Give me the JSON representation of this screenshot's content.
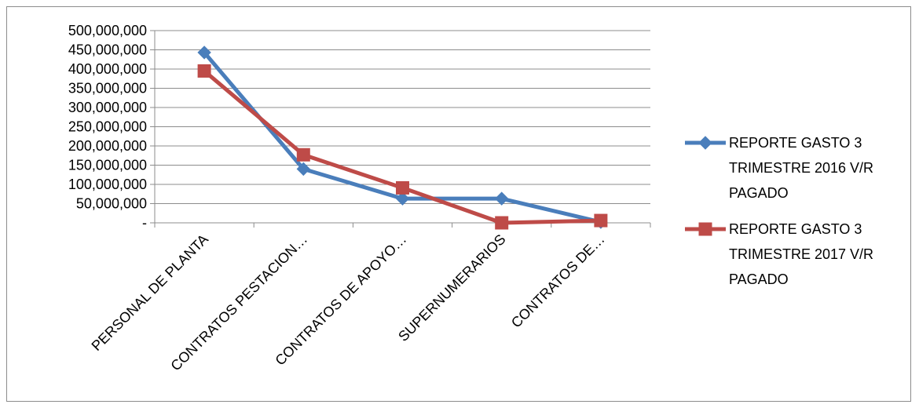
{
  "chart_data": {
    "type": "line",
    "categories": [
      "PERSONAL DE PLANTA",
      "CONTRATOS PESTACION…",
      "CONTRATOS DE APOYO…",
      "SUPERNUMERARIOS",
      "CONTRATOS DE…"
    ],
    "series": [
      {
        "name": "REPORTE GASTO 3 TRIMESTRE 2016 V/R PAGADO",
        "name_lines": [
          "REPORTE GASTO 3",
          "TRIMESTRE 2016 V/R",
          "PAGADO"
        ],
        "marker": "diamond",
        "color": "#4a7ebb",
        "values": [
          443000000,
          140000000,
          63000000,
          63000000,
          2000000
        ]
      },
      {
        "name": "REPORTE GASTO 3 TRIMESTRE 2017 V/R PAGADO",
        "name_lines": [
          "REPORTE GASTO 3",
          "TRIMESTRE 2017 V/R",
          "PAGADO"
        ],
        "marker": "square",
        "color": "#be4b48",
        "values": [
          395000000,
          177000000,
          91000000,
          0,
          6000000
        ]
      }
    ],
    "y_ticks": [
      {
        "value": 0,
        "label": "-"
      },
      {
        "value": 50000000,
        "label": "50,000,000"
      },
      {
        "value": 100000000,
        "label": "100,000,000"
      },
      {
        "value": 150000000,
        "label": "150,000,000"
      },
      {
        "value": 200000000,
        "label": "200,000,000"
      },
      {
        "value": 250000000,
        "label": "250,000,000"
      },
      {
        "value": 300000000,
        "label": "300,000,000"
      },
      {
        "value": 350000000,
        "label": "350,000,000"
      },
      {
        "value": 400000000,
        "label": "400,000,000"
      },
      {
        "value": 450000000,
        "label": "450,000,000"
      },
      {
        "value": 500000000,
        "label": "500,000,000"
      }
    ],
    "ylim": [
      0,
      500000000
    ],
    "grid": true,
    "legend_position": "right",
    "title": "",
    "xlabel": "",
    "ylabel": ""
  }
}
